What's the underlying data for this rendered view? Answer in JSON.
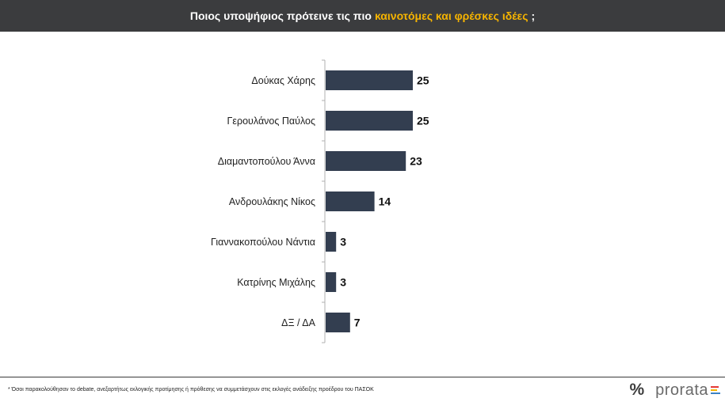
{
  "header": {
    "title_pre": "Ποιος υποψήφιος πρότεινε τις πιο",
    "title_highlight": "καινοτόμες και φρέσκες ιδέες",
    "title_post": ";"
  },
  "colors": {
    "header_bg": "#3b3c3e",
    "highlight": "#f6b400",
    "bar": "#333e50",
    "axis": "#b0b0b0"
  },
  "chart_data": {
    "type": "bar",
    "orientation": "horizontal",
    "categories": [
      "Δούκας Χάρης",
      "Γερουλάνος Παύλος",
      "Διαμαντοπούλου Άννα",
      "Ανδρουλάκης Νίκος",
      "Γιαννακοπούλου Νάντια",
      "Κατρίνης Μιχάλης",
      "ΔΞ / ΔΑ"
    ],
    "values": [
      25,
      25,
      23,
      14,
      3,
      3,
      7
    ],
    "value_labels_shown": true,
    "xlim": [
      0,
      25
    ],
    "grid": false,
    "legend": "none"
  },
  "footer": {
    "note": "* Όσοι παρακολούθησαν το debate, ανεξαρτήτως εκλογικής προτίμησης ή πρόθεσης να συμμετάσχουν στις εκλογές ανάδειξης προέδρου του ΠΑΣΟΚ"
  },
  "logo": {
    "symbol": "%",
    "name": "prorata",
    "bar_colors": [
      "#e53935",
      "#f6b400",
      "#3b82c4"
    ]
  }
}
